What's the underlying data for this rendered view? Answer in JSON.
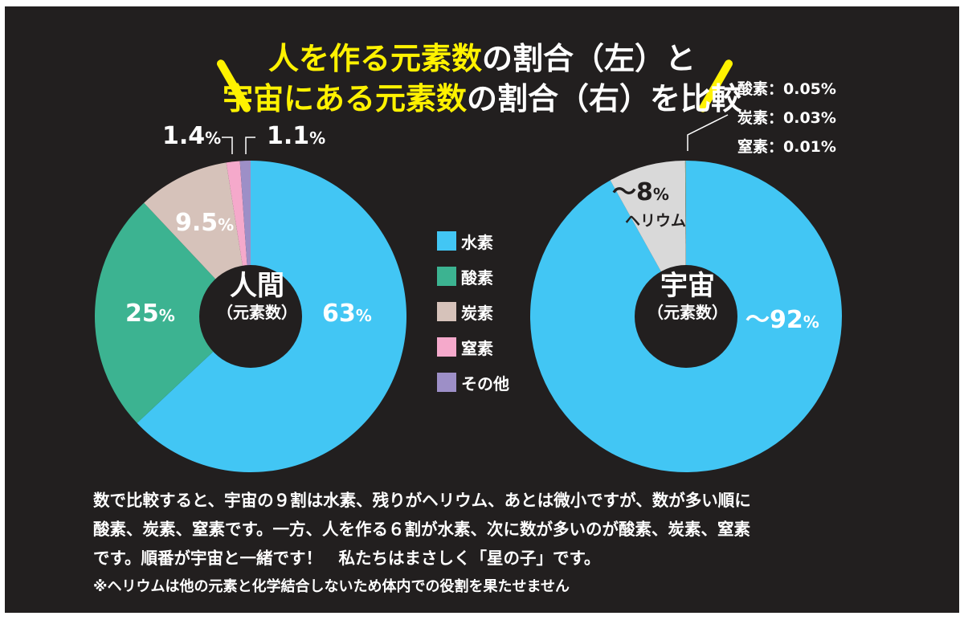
{
  "title": {
    "line1_a": "人を作る元素数",
    "line1_b": "の割合（左）と",
    "line2_a": "宇宙にある元素数",
    "line2_b": "の割合（右）を比較"
  },
  "legend": [
    {
      "label": "水素",
      "color": "#42c6f4"
    },
    {
      "label": "酸素",
      "color": "#3cb391"
    },
    {
      "label": "炭素",
      "color": "#d6c2ba"
    },
    {
      "label": "窒素",
      "color": "#f5a9cb"
    },
    {
      "label": "その他",
      "color": "#9d8fc7"
    }
  ],
  "human_center": {
    "main": "人間",
    "sub": "（元素数）"
  },
  "universe_center": {
    "main": "宇宙",
    "sub": "（元素数）"
  },
  "human_labels": {
    "hydrogen": "63",
    "oxygen": "25",
    "carbon": "9.5",
    "nitrogen": "1.4",
    "other": "1.1",
    "pct": "%"
  },
  "universe_labels": {
    "hydrogen": "～92",
    "helium": "～8",
    "helium_name": "ヘリウム",
    "pct": "%"
  },
  "universe_minor": [
    "酸素：0.05%",
    "炭素：0.03%",
    "窒素：0.01%"
  ],
  "body": {
    "line1": "数で比較すると、宇宙の９割は水素、残りがヘリウム、あとは微小ですが、数が多い順に",
    "line2": "酸素、炭素、窒素です。一方、人を作る６割が水素、次に数が多いのが酸素、炭素、窒素",
    "line3": "です。順番が宇宙と一緒です！　私たちはまさしく「星の子」です。",
    "note": "※ヘリウムは他の元素と化学結合しないため体内での役割を果たせません"
  },
  "chart_data": [
    {
      "type": "pie",
      "categories": [
        "水素",
        "酸素",
        "炭素",
        "窒素",
        "その他"
      ],
      "values": [
        63,
        25,
        9.5,
        1.4,
        1.1
      ],
      "colors": [
        "#42c6f4",
        "#3cb391",
        "#d6c2ba",
        "#f5a9cb",
        "#9d8fc7"
      ],
      "direction": "clockwise-from-top",
      "legend": "center"
    },
    {
      "type": "pie",
      "categories": [
        "水素",
        "ヘリウム",
        "酸素",
        "炭素",
        "窒素"
      ],
      "values": [
        92,
        8,
        0.05,
        0.03,
        0.01
      ],
      "colors": [
        "#42c6f4",
        "#d9d9d9",
        "#3cb391",
        "#d6c2ba",
        "#f5a9cb"
      ],
      "direction": "clockwise-from-top"
    }
  ]
}
